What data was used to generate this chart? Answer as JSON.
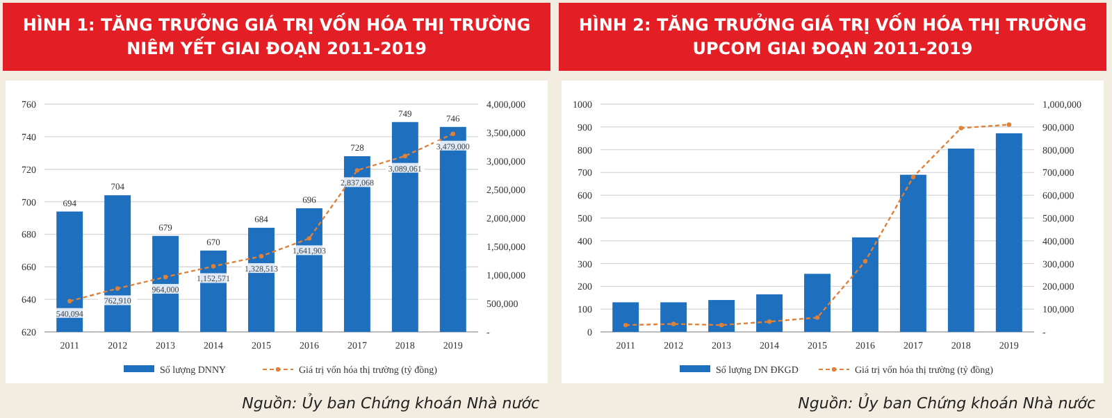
{
  "chart_data": [
    {
      "type": "bar",
      "title": "HÌNH 1: TĂNG TRƯỞNG GIÁ TRỊ VỐN HÓA THỊ TRƯỜNG NIÊM YẾT GIAI ĐOẠN 2011-2019",
      "categories": [
        "2011",
        "2012",
        "2013",
        "2014",
        "2015",
        "2016",
        "2017",
        "2018",
        "2019"
      ],
      "series": [
        {
          "name": "Số lượng DNNY",
          "type": "bar",
          "color": "#1f6fbf",
          "values": [
            694,
            704,
            679,
            670,
            684,
            696,
            728,
            749,
            746
          ],
          "data_labels": true
        },
        {
          "name": "Giá trị vốn hóa thị trường (tỷ đồng)",
          "type": "line",
          "axis": "y2",
          "color": "#e0813a",
          "line_style": "dashed",
          "marker": "circle",
          "values": [
            540094,
            762910,
            964000,
            1152571,
            1328513,
            1641903,
            2837068,
            3089061,
            3479000
          ],
          "value_labels": [
            "540,094",
            "762,910",
            "964,000",
            "1,152,571",
            "1,328,513",
            "1,641,903",
            "2,837,068",
            "3,089,061",
            "3,479,000"
          ]
        }
      ],
      "ylim": [
        620,
        760
      ],
      "yticks": [
        620,
        640,
        660,
        680,
        700,
        720,
        740,
        760
      ],
      "y2lim": [
        0,
        4000000
      ],
      "y2ticks": [
        {
          "value": 0,
          "label": "-"
        },
        {
          "value": 500000,
          "label": "500,000"
        },
        {
          "value": 1000000,
          "label": "1,000,000"
        },
        {
          "value": 1500000,
          "label": "1,500,000"
        },
        {
          "value": 2000000,
          "label": "2,000,000"
        },
        {
          "value": 2500000,
          "label": "2,500,000"
        },
        {
          "value": 3000000,
          "label": "3,000,000"
        },
        {
          "value": 3500000,
          "label": "3,500,000"
        },
        {
          "value": 4000000,
          "label": "4,000,000"
        }
      ],
      "grid": "y",
      "legend": "bottom",
      "annotations": [
        "Nguồn: Ủy ban Chứng khoán Nhà nước"
      ]
    },
    {
      "type": "bar",
      "title": "HÌNH 2: TĂNG TRƯỞNG GIÁ TRỊ VỐN HÓA THỊ TRƯỜNG UPCOM GIAI ĐOẠN 2011-2019",
      "categories": [
        "2011",
        "2012",
        "2013",
        "2014",
        "2015",
        "2016",
        "2017",
        "2018",
        "2019"
      ],
      "series": [
        {
          "name": "Số lượng DN ĐKGD",
          "type": "bar",
          "color": "#1f6fbf",
          "values": [
            130,
            130,
            140,
            165,
            255,
            415,
            690,
            805,
            872
          ]
        },
        {
          "name": "Giá trị vốn hóa thị trường (tỷ đồng)",
          "type": "line",
          "axis": "y2",
          "color": "#e0813a",
          "line_style": "dashed",
          "marker": "circle",
          "values": [
            30000,
            35000,
            30000,
            45000,
            63000,
            310000,
            680000,
            895000,
            910000
          ]
        }
      ],
      "ylim": [
        0,
        1000
      ],
      "yticks": [
        0,
        100,
        200,
        300,
        400,
        500,
        600,
        700,
        800,
        900,
        1000
      ],
      "y2lim": [
        0,
        1000000
      ],
      "y2ticks": [
        {
          "value": 0,
          "label": "-"
        },
        {
          "value": 100000,
          "label": "100,000"
        },
        {
          "value": 200000,
          "label": "200,000"
        },
        {
          "value": 300000,
          "label": "300,000"
        },
        {
          "value": 400000,
          "label": "400,000"
        },
        {
          "value": 500000,
          "label": "500,000"
        },
        {
          "value": 600000,
          "label": "600,000"
        },
        {
          "value": 700000,
          "label": "700,000"
        },
        {
          "value": 800000,
          "label": "800,000"
        },
        {
          "value": 900000,
          "label": "900,000"
        },
        {
          "value": 1000000,
          "label": "1,000,000"
        }
      ],
      "grid": "y",
      "legend": "bottom",
      "annotations": [
        "Nguồn: Ủy ban Chứng khoán Nhà nước"
      ]
    }
  ]
}
